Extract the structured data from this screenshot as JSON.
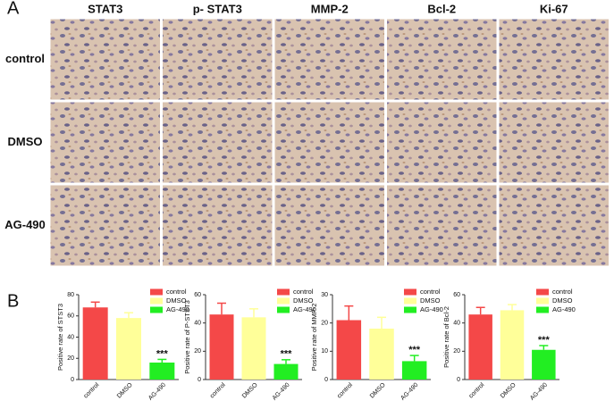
{
  "panel_a": {
    "label": "A",
    "columns": [
      "STAT3",
      "p- STAT3",
      "MMP-2",
      "Bcl-2",
      "Ki-67"
    ],
    "rows": [
      "control",
      "DMSO",
      "AG-490"
    ]
  },
  "panel_b": {
    "label": "B"
  },
  "chart_data": [
    {
      "type": "bar",
      "y_label": "Positive rate of STST3",
      "categories": [
        "control",
        "DMSO",
        "AG-490"
      ],
      "values": [
        68,
        58,
        16
      ],
      "errors": [
        5,
        5,
        3
      ],
      "colors": [
        "#f44848",
        "#ffff99",
        "#22ee22"
      ],
      "ylim": [
        0,
        80
      ],
      "yticks": [
        0,
        20,
        40,
        60,
        80
      ],
      "annotation": "***"
    },
    {
      "type": "bar",
      "y_label": "Positive rate of P-STST3",
      "categories": [
        "control",
        "DMSO",
        "AG-490"
      ],
      "values": [
        46,
        44,
        11
      ],
      "errors": [
        8,
        6,
        3
      ],
      "colors": [
        "#f44848",
        "#ffff99",
        "#22ee22"
      ],
      "ylim": [
        0,
        60
      ],
      "yticks": [
        0,
        20,
        40,
        60
      ],
      "annotation": "***"
    },
    {
      "type": "bar",
      "y_label": "Positive rate of MMP-2",
      "categories": [
        "control",
        "DMSO",
        "AG-490"
      ],
      "values": [
        21,
        18,
        6.5
      ],
      "errors": [
        5,
        4,
        2
      ],
      "colors": [
        "#f44848",
        "#ffff99",
        "#22ee22"
      ],
      "ylim": [
        0,
        30
      ],
      "yticks": [
        0,
        10,
        20,
        30
      ],
      "annotation": "***"
    },
    {
      "type": "bar",
      "y_label": "Positive rate of Bcl-2",
      "categories": [
        "control",
        "DMSO",
        "AG-490"
      ],
      "values": [
        46,
        49,
        21
      ],
      "errors": [
        5,
        4,
        3
      ],
      "colors": [
        "#f44848",
        "#ffff99",
        "#22ee22"
      ],
      "ylim": [
        0,
        60
      ],
      "yticks": [
        0,
        20,
        40,
        60
      ],
      "annotation": "***"
    }
  ]
}
